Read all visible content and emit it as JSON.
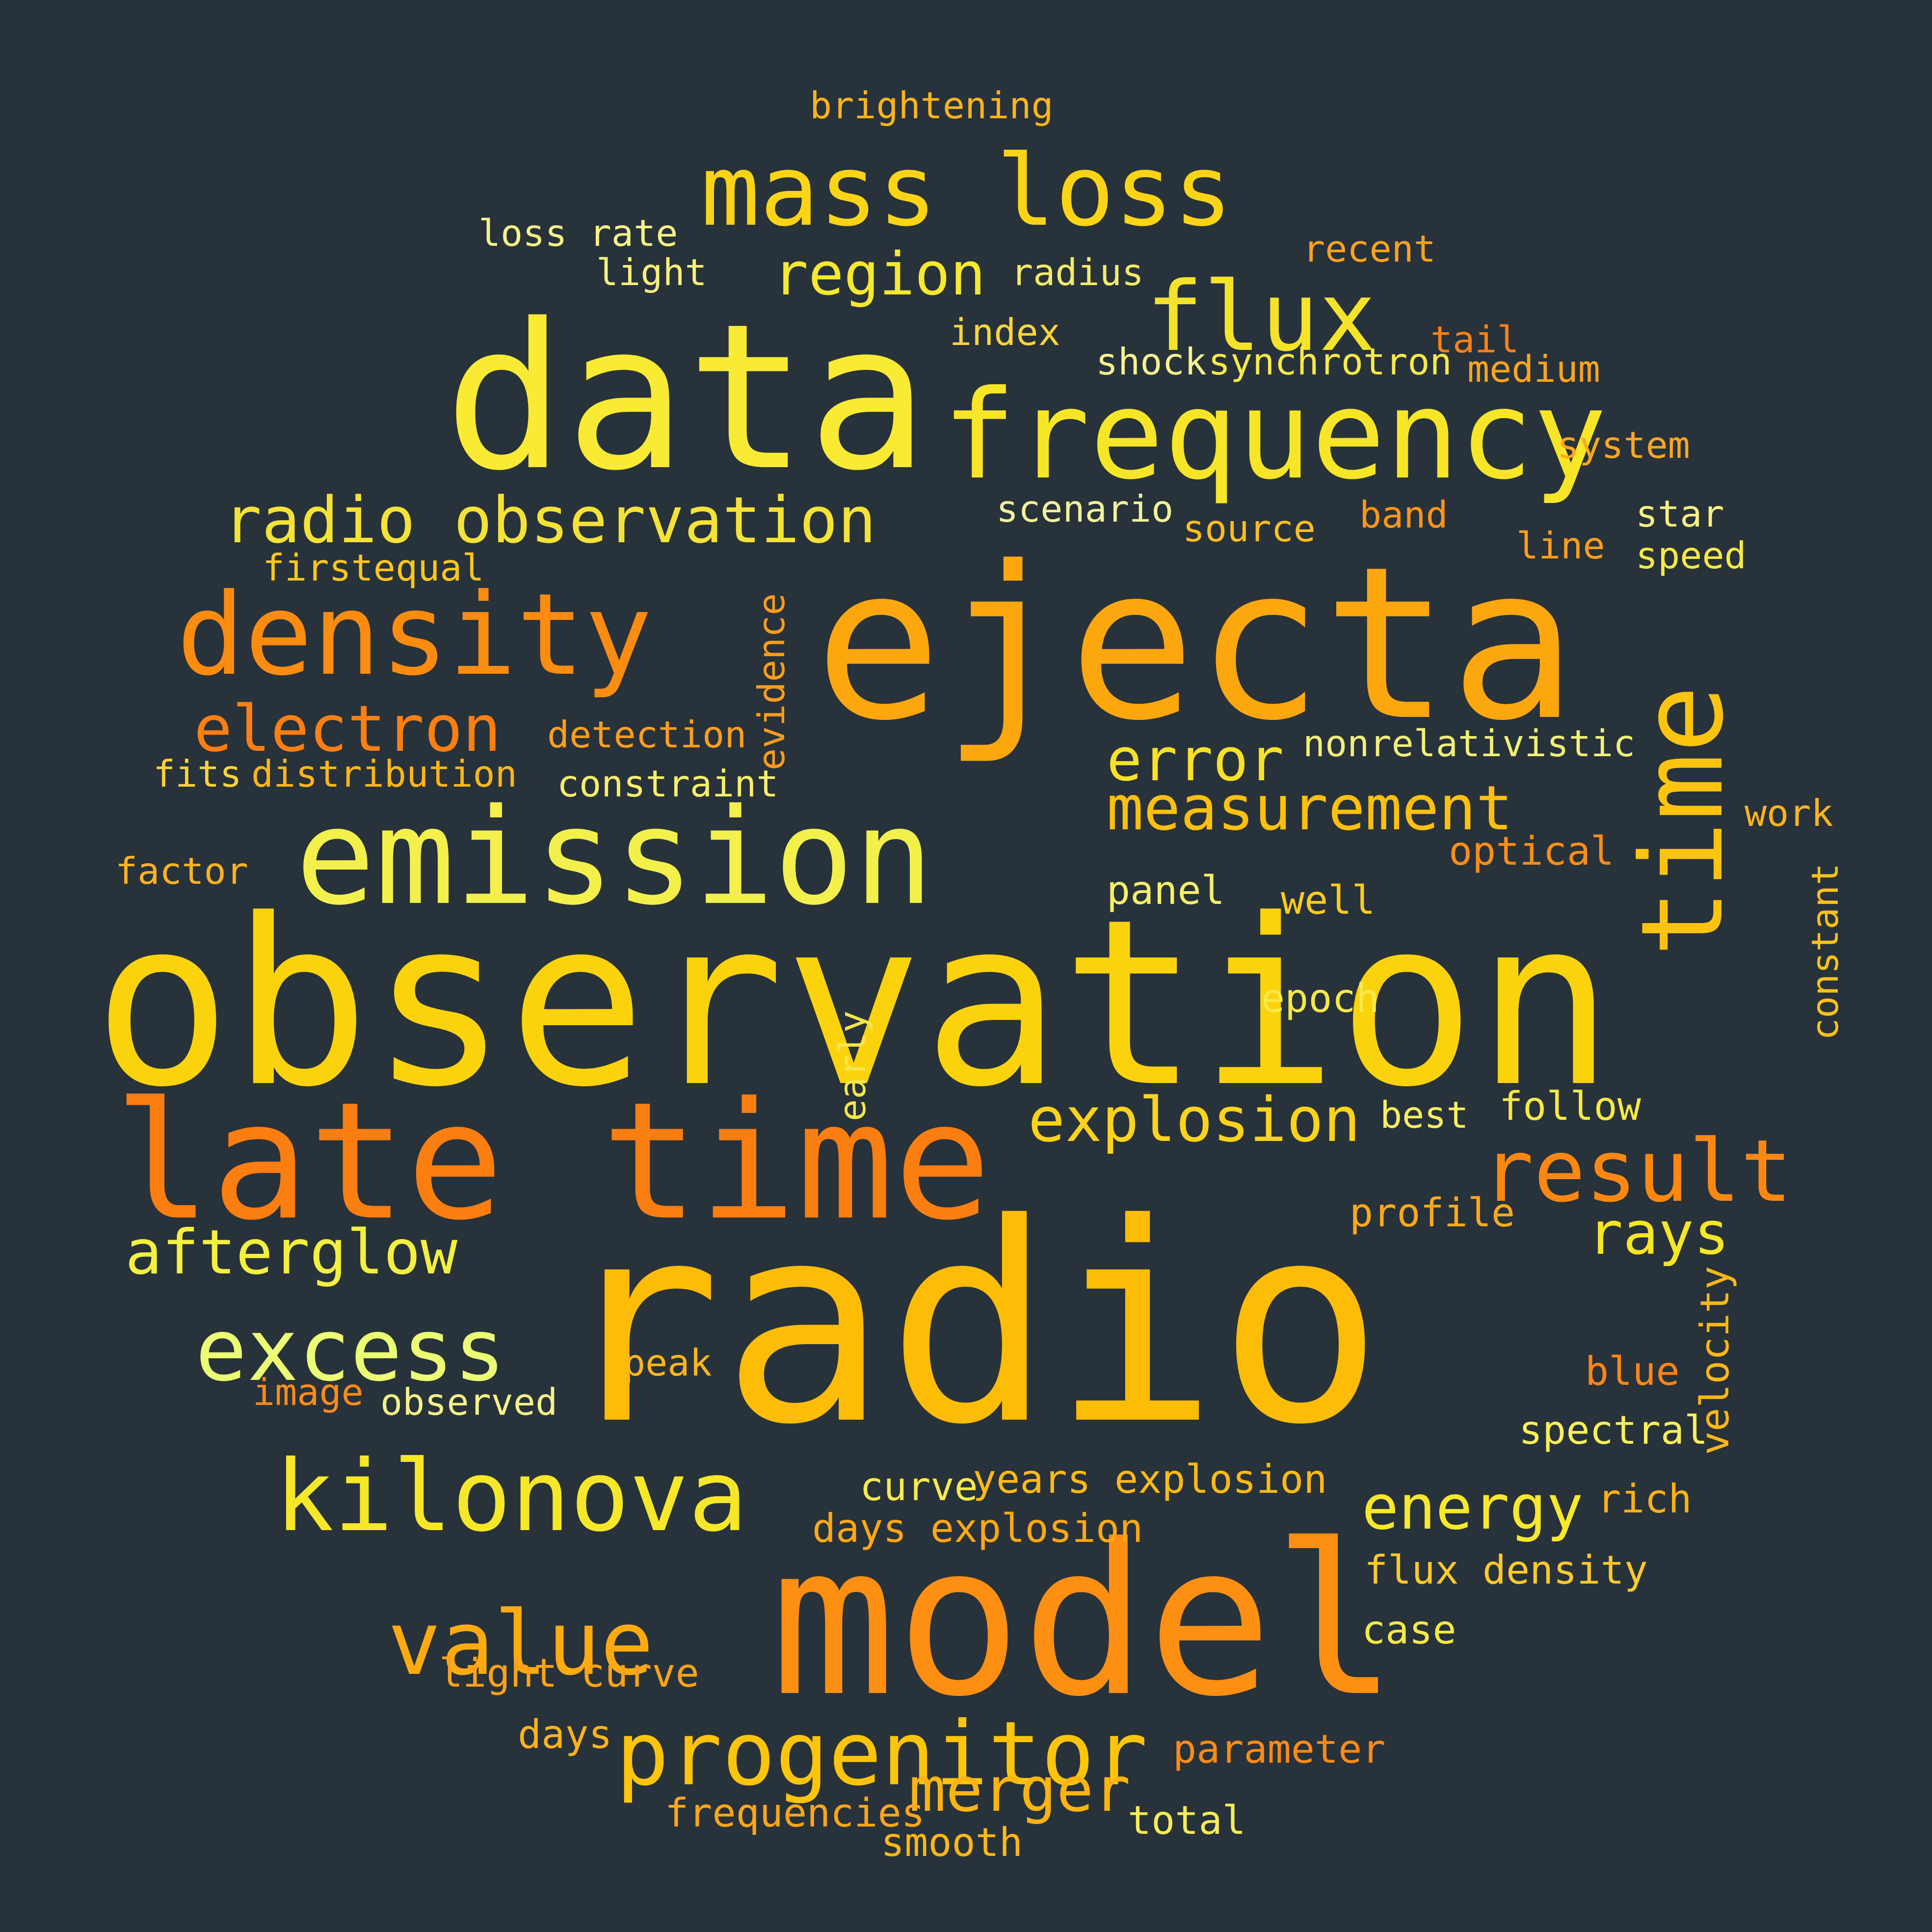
{
  "words": [
    {
      "text": "observation",
      "color": "#fbd30c"
    },
    {
      "text": "radio",
      "color": "#fdbc06"
    },
    {
      "text": "ejecta",
      "color": "#fda70f"
    },
    {
      "text": "data",
      "color": "#f9ea33"
    },
    {
      "text": "model",
      "color": "#fd8f12"
    },
    {
      "text": "late time",
      "color": "#fb7e11"
    },
    {
      "text": "frequency",
      "color": "#f7e627"
    },
    {
      "text": "emission",
      "color": "#f3f04c"
    },
    {
      "text": "time",
      "color": "#fdc40f"
    },
    {
      "text": "mass loss",
      "color": "#fbd416"
    },
    {
      "text": "density",
      "color": "#fb8c10"
    },
    {
      "text": "kilonova",
      "color": "#f6e829"
    },
    {
      "text": "progenitor",
      "color": "#fcc40b"
    },
    {
      "text": "flux",
      "color": "#f5e32a"
    },
    {
      "text": "value",
      "color": "#fdab0f"
    },
    {
      "text": "excess",
      "color": "#ecfc74"
    },
    {
      "text": "radio observation",
      "color": "#f4e237"
    },
    {
      "text": "result",
      "color": "#fc8811"
    },
    {
      "text": "region",
      "color": "#f5e82f"
    },
    {
      "text": "electron",
      "color": "#fc7f12"
    },
    {
      "text": "afterglow",
      "color": "#f3f040"
    },
    {
      "text": "measurement",
      "color": "#fdc00d"
    },
    {
      "text": "explosion",
      "color": "#fdd31a"
    },
    {
      "text": "energy",
      "color": "#f8e82c"
    },
    {
      "text": "merger",
      "color": "#fcb410"
    },
    {
      "text": "error",
      "color": "#f8e128"
    },
    {
      "text": "rays",
      "color": "#f6e624"
    },
    {
      "text": "years explosion",
      "color": "#fcba15"
    },
    {
      "text": "days explosion",
      "color": "#fda814"
    },
    {
      "text": "flux density",
      "color": "#fdc92a"
    },
    {
      "text": "light curve",
      "color": "#fca21a"
    },
    {
      "text": "parameter",
      "color": "#fc8b14"
    },
    {
      "text": "frequencies",
      "color": "#fda618"
    },
    {
      "text": "smooth",
      "color": "#fdb814"
    },
    {
      "text": "total",
      "color": "#f5ed53"
    },
    {
      "text": "days",
      "color": "#fcb31c"
    },
    {
      "text": "curve",
      "color": "#f5eb4d"
    },
    {
      "text": "case",
      "color": "#f5ea45"
    },
    {
      "text": "rich",
      "color": "#fdb113"
    },
    {
      "text": "spectral",
      "color": "#f7f05a"
    },
    {
      "text": "blue",
      "color": "#fc8616"
    },
    {
      "text": "velocity",
      "color": "#fdb716"
    },
    {
      "text": "profile",
      "color": "#fda91c"
    },
    {
      "text": "best",
      "color": "#f8ee62"
    },
    {
      "text": "follow",
      "color": "#f6ea44"
    },
    {
      "text": "constant",
      "color": "#fcc11c"
    },
    {
      "text": "epoch",
      "color": "#f6e94a"
    },
    {
      "text": "early",
      "color": "#f5e64a"
    },
    {
      "text": "well",
      "color": "#fcca1f"
    },
    {
      "text": "panel",
      "color": "#f5f06b"
    },
    {
      "text": "optical",
      "color": "#fc8d18"
    },
    {
      "text": "work",
      "color": "#fdb31e"
    },
    {
      "text": "nonrelativistic",
      "color": "#f0f07a"
    },
    {
      "text": "detection",
      "color": "#fd9e1f"
    },
    {
      "text": "evidence",
      "color": "#fc9c1c"
    },
    {
      "text": "constraint",
      "color": "#f6ef6a"
    },
    {
      "text": "distribution",
      "color": "#fcb619"
    },
    {
      "text": "fits",
      "color": "#fdd23a"
    },
    {
      "text": "factor",
      "color": "#fcb321"
    },
    {
      "text": "image",
      "color": "#fc8b1b"
    },
    {
      "text": "observed",
      "color": "#f5f28a"
    },
    {
      "text": "peak",
      "color": "#fdb51e"
    },
    {
      "text": "firstequal",
      "color": "#fcc61d"
    },
    {
      "text": "scenario",
      "color": "#f3f29d"
    },
    {
      "text": "source",
      "color": "#fdbe21"
    },
    {
      "text": "band",
      "color": "#fc951a"
    },
    {
      "text": "line",
      "color": "#fd9e1c"
    },
    {
      "text": "star",
      "color": "#f6f084"
    },
    {
      "text": "speed",
      "color": "#f6ea45"
    },
    {
      "text": "system",
      "color": "#fda71f"
    },
    {
      "text": "shock",
      "color": "#f5f392"
    },
    {
      "text": "synchrotron",
      "color": "#f7ea4a"
    },
    {
      "text": "tail",
      "color": "#fb8117"
    },
    {
      "text": "medium",
      "color": "#fda41f"
    },
    {
      "text": "index",
      "color": "#fdd53a"
    },
    {
      "text": "radius",
      "color": "#f3ea6a"
    },
    {
      "text": "light",
      "color": "#f5f07a"
    },
    {
      "text": "loss rate",
      "color": "#f5f388"
    },
    {
      "text": "recent",
      "color": "#fda21e"
    },
    {
      "text": "brightening",
      "color": "#fdb41b"
    }
  ]
}
